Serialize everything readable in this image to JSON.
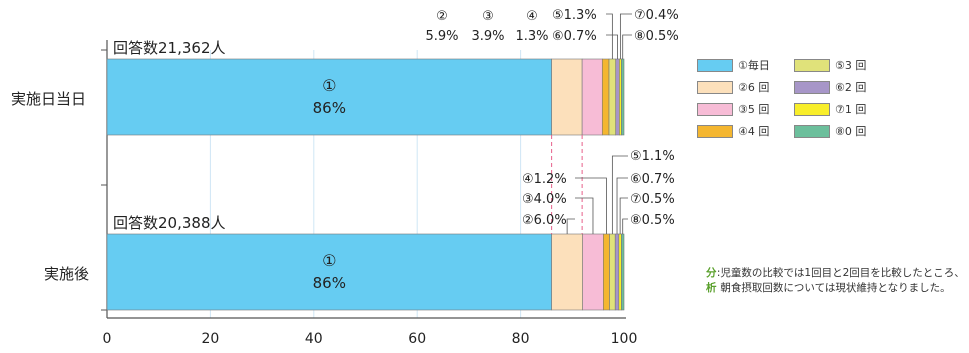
{
  "chart_data": {
    "type": "bar",
    "orientation": "horizontal",
    "stacked": true,
    "xlim": [
      0,
      100
    ],
    "xticks": [
      "0",
      "20",
      "40",
      "60",
      "80",
      "100"
    ],
    "categories": [
      "実施日当日",
      "実施後"
    ],
    "response_counts": [
      "回答数21,362人",
      "回答数20,388人"
    ],
    "series": [
      {
        "name": "①毎日",
        "color": "#66ccf2",
        "values": [
          86,
          86
        ],
        "labels": [
          "86%",
          "86%"
        ],
        "marker": "①"
      },
      {
        "name": "②6 回",
        "color": "#fce0bb",
        "values": [
          5.9,
          6.0
        ],
        "labels": [
          "5.9%",
          "6.0%"
        ],
        "marker": "②"
      },
      {
        "name": "③5 回",
        "color": "#f7bcd6",
        "values": [
          3.9,
          4.0
        ],
        "labels": [
          "3.9%",
          "4.0%"
        ],
        "marker": "③"
      },
      {
        "name": "④4 回",
        "color": "#f4b630",
        "values": [
          1.3,
          1.2
        ],
        "labels": [
          "1.3%",
          "1.2%"
        ],
        "marker": "④"
      },
      {
        "name": "⑤3 回",
        "color": "#e0e27a",
        "values": [
          1.3,
          1.1
        ],
        "labels": [
          "1.3%",
          "1.1%"
        ],
        "marker": "⑤"
      },
      {
        "name": "⑥2 回",
        "color": "#a796c8",
        "values": [
          0.7,
          0.7
        ],
        "labels": [
          "0.7%",
          "0.7%"
        ],
        "marker": "⑥"
      },
      {
        "name": "⑦1 回",
        "color": "#f8ee2a",
        "values": [
          0.4,
          0.5
        ],
        "labels": [
          "0.4%",
          "0.5%"
        ],
        "marker": "⑦"
      },
      {
        "name": "⑧0 回",
        "color": "#6cbf9c",
        "values": [
          0.5,
          0.5
        ],
        "labels": [
          "0.5%",
          "0.5%"
        ],
        "marker": "⑧"
      }
    ],
    "grid": true
  },
  "analysis": {
    "label": "分析",
    "text": "児童数の比較では1回目と2回目を比較したところ、朝食摂取回数については現状維持となりました。"
  }
}
